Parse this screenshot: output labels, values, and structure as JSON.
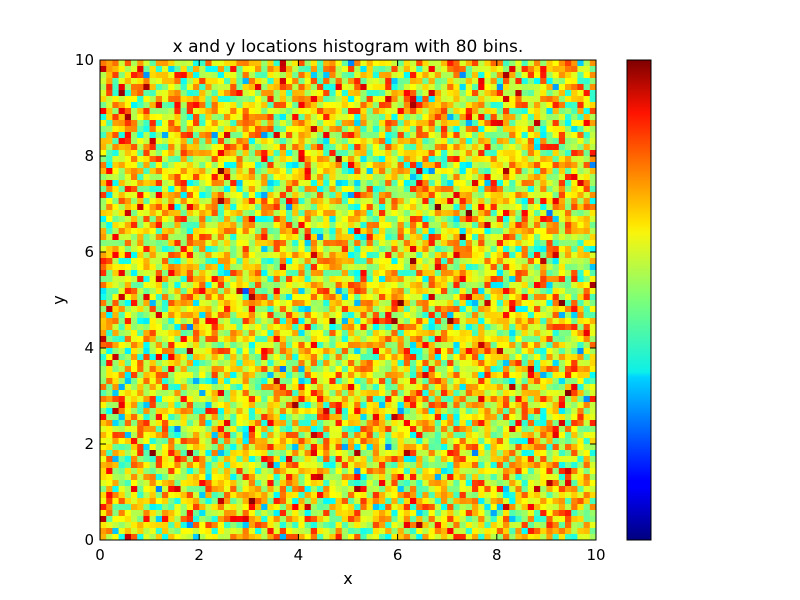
{
  "chart_data": {
    "type": "heatmap",
    "title": "x and y locations histogram with 80 bins.",
    "xlabel": "x",
    "ylabel": "y",
    "xlim": [
      0,
      10
    ],
    "ylim": [
      0,
      10
    ],
    "bins": 80,
    "x_ticks": [
      0,
      2,
      4,
      6,
      8,
      10
    ],
    "y_ticks": [
      0,
      2,
      4,
      6,
      8,
      10
    ],
    "x_tick_labels": [
      "0",
      "2",
      "4",
      "6",
      "8",
      "10"
    ],
    "y_tick_labels": [
      "0",
      "2",
      "4",
      "6",
      "8",
      "10"
    ],
    "colormap": "jet",
    "colorbar": true,
    "colorbar_placement": "right",
    "colorbar_tick_labels": [],
    "grid": false
  }
}
